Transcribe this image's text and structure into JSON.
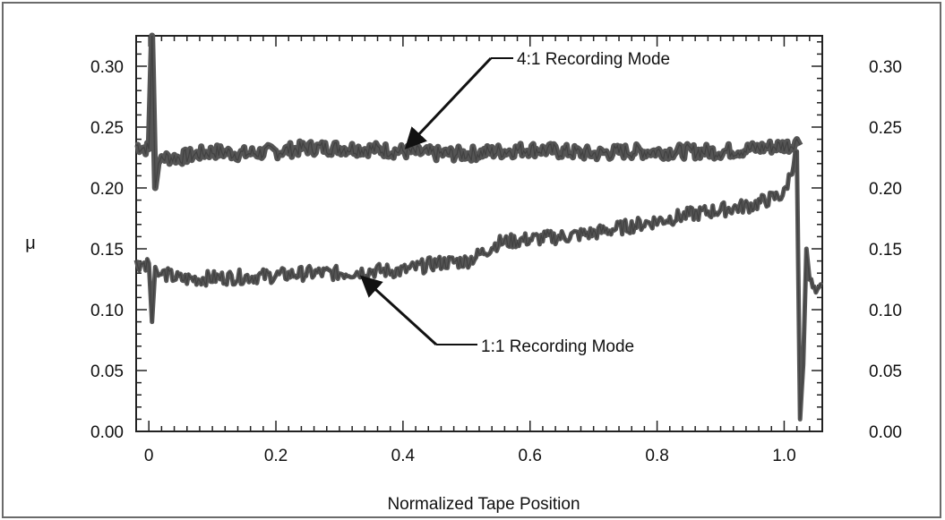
{
  "chart_data": {
    "type": "line",
    "title": "",
    "xlabel": "Normalized Tape Position",
    "ylabel": "μ",
    "xlim": [
      -0.02,
      1.06
    ],
    "ylim": [
      0.0,
      0.325
    ],
    "x_ticks": [
      "0",
      "0.2",
      "0.4",
      "0.6",
      "0.8",
      "1.0"
    ],
    "x_tick_values": [
      0,
      0.2,
      0.4,
      0.6,
      0.8,
      1.0
    ],
    "y_ticks": [
      "0.00",
      "0.05",
      "0.10",
      "0.15",
      "0.20",
      "0.25",
      "0.30"
    ],
    "y_tick_values": [
      0.0,
      0.05,
      0.1,
      0.15,
      0.2,
      0.25,
      0.3
    ],
    "right_axis_mirrors_left": true,
    "grid": false,
    "legend": "none",
    "line_color": "#555555",
    "series": [
      {
        "x": [
          -0.02,
          0.0,
          0.005,
          0.01,
          0.015,
          0.02,
          0.05,
          0.1,
          0.15,
          0.2,
          0.25,
          0.3,
          0.35,
          0.4,
          0.45,
          0.5,
          0.55,
          0.6,
          0.65,
          0.7,
          0.75,
          0.8,
          0.85,
          0.9,
          0.95,
          1.0,
          1.01,
          1.02,
          1.025
        ],
        "y": [
          0.235,
          0.232,
          0.325,
          0.2,
          0.22,
          0.225,
          0.225,
          0.23,
          0.228,
          0.23,
          0.233,
          0.233,
          0.232,
          0.23,
          0.228,
          0.228,
          0.23,
          0.232,
          0.23,
          0.228,
          0.23,
          0.23,
          0.23,
          0.23,
          0.232,
          0.235,
          0.235,
          0.24,
          0.235
        ]
      },
      {
        "x": [
          -0.02,
          0.0,
          0.005,
          0.01,
          0.015,
          0.02,
          0.05,
          0.1,
          0.15,
          0.2,
          0.25,
          0.3,
          0.35,
          0.4,
          0.45,
          0.5,
          0.52,
          0.55,
          0.6,
          0.65,
          0.7,
          0.75,
          0.8,
          0.85,
          0.9,
          0.95,
          1.0,
          1.02,
          1.025,
          1.03,
          1.035,
          1.04,
          1.05,
          1.06
        ],
        "y": [
          0.138,
          0.138,
          0.09,
          0.135,
          0.128,
          0.13,
          0.125,
          0.126,
          0.127,
          0.128,
          0.13,
          0.13,
          0.132,
          0.132,
          0.138,
          0.14,
          0.145,
          0.155,
          0.158,
          0.16,
          0.163,
          0.168,
          0.173,
          0.178,
          0.182,
          0.186,
          0.195,
          0.23,
          0.01,
          0.055,
          0.15,
          0.125,
          0.11,
          0.12
        ]
      }
    ],
    "annotations": [
      {
        "text": "4:1 Recording Mode",
        "arrow_target": [
          0.405,
          0.233
        ]
      },
      {
        "text": "1:1 Recording Mode",
        "arrow_target": [
          0.335,
          0.127
        ]
      }
    ]
  }
}
